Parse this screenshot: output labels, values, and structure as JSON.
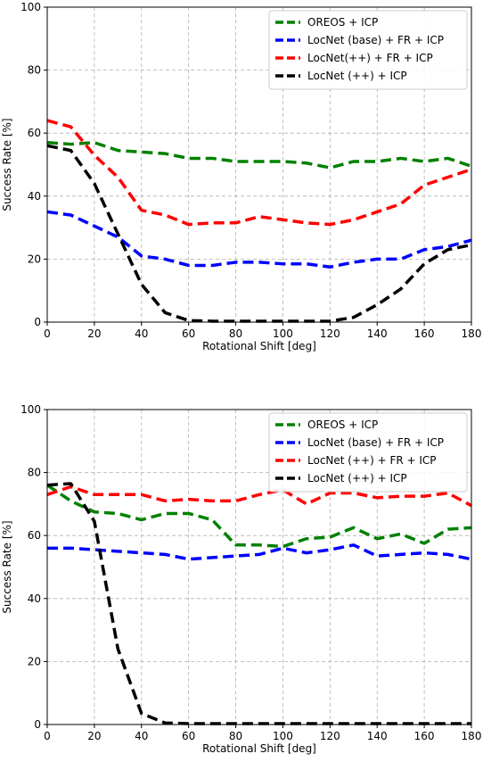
{
  "chart_data": [
    {
      "type": "line",
      "title": "",
      "xlabel": "Rotational Shift [deg]",
      "ylabel": "Success Rate [%]",
      "xlim": [
        0,
        180
      ],
      "ylim": [
        0,
        100
      ],
      "xticks": [
        "0",
        "20",
        "40",
        "60",
        "80",
        "100",
        "120",
        "140",
        "160",
        "180"
      ],
      "yticks": [
        "0",
        "20",
        "40",
        "60",
        "80",
        "100"
      ],
      "grid": true,
      "legend_position": "top-right",
      "x": [
        0,
        10,
        20,
        30,
        40,
        50,
        60,
        70,
        80,
        90,
        100,
        110,
        120,
        130,
        140,
        150,
        160,
        170,
        180
      ],
      "series": [
        {
          "name": "OREOS + ICP",
          "color": "#008000",
          "values": [
            57,
            56.5,
            57,
            54.5,
            54,
            53.5,
            52,
            52,
            51,
            51,
            51,
            50.5,
            49,
            51,
            51,
            52,
            51,
            52,
            49.5
          ]
        },
        {
          "name": "LocNet (base) + FR + ICP",
          "color": "#0000ff",
          "values": [
            35,
            34,
            30.5,
            27,
            21,
            20,
            18,
            18,
            19,
            19,
            18.5,
            18.5,
            17.5,
            19,
            20,
            20,
            23,
            24,
            26
          ]
        },
        {
          "name": "LocNet(++) + FR + ICP",
          "color": "#ff0000",
          "values": [
            64,
            62,
            53,
            46,
            35.5,
            34,
            31,
            31.5,
            31.5,
            33.5,
            32.5,
            31.5,
            31,
            32.5,
            35,
            37.5,
            43.5,
            46,
            48.5
          ]
        },
        {
          "name": "LocNet (++) + ICP",
          "color": "#000000",
          "values": [
            56,
            54.5,
            44,
            28,
            12,
            3,
            0.5,
            0.3,
            0.3,
            0.3,
            0.3,
            0.3,
            0.3,
            1.5,
            5.5,
            10.5,
            18.5,
            23,
            24.5
          ]
        }
      ]
    },
    {
      "type": "line",
      "title": "",
      "xlabel": "Rotational Shift [deg]",
      "ylabel": "Success Rate [%]",
      "xlim": [
        0,
        180
      ],
      "ylim": [
        0,
        100
      ],
      "xticks": [
        "0",
        "20",
        "40",
        "60",
        "80",
        "100",
        "120",
        "140",
        "160",
        "180"
      ],
      "yticks": [
        "0",
        "20",
        "40",
        "60",
        "80",
        "100"
      ],
      "grid": true,
      "legend_position": "top-right",
      "x": [
        0,
        10,
        20,
        30,
        40,
        50,
        60,
        70,
        80,
        90,
        100,
        110,
        120,
        130,
        140,
        150,
        160,
        170,
        180
      ],
      "series": [
        {
          "name": "OREOS + ICP",
          "color": "#008000",
          "values": [
            76,
            71,
            67.5,
            67,
            65,
            67,
            67,
            65,
            57,
            57,
            56.5,
            59,
            59.5,
            62.5,
            59,
            60.5,
            57.5,
            62,
            62.5
          ]
        },
        {
          "name": "LocNet (base) + FR + ICP",
          "color": "#0000ff",
          "values": [
            56,
            56,
            55.5,
            55,
            54.5,
            54,
            52.5,
            53,
            53.5,
            54,
            56,
            54.5,
            55.5,
            57,
            53.5,
            54,
            54.5,
            54,
            52.5
          ]
        },
        {
          "name": "LocNet (++) + FR + ICP",
          "color": "#ff0000",
          "values": [
            73,
            75.5,
            73,
            73,
            73,
            71,
            71.5,
            71,
            71,
            73,
            74.5,
            70,
            73.5,
            73.5,
            72,
            72.5,
            72.5,
            73.5,
            69.5
          ]
        },
        {
          "name": "LocNet (++) + ICP",
          "color": "#000000",
          "values": [
            76,
            76.5,
            64.5,
            24,
            3.5,
            0.5,
            0.3,
            0.3,
            0.3,
            0.3,
            0.3,
            0.3,
            0.3,
            0.3,
            0.3,
            0.3,
            0.3,
            0.3,
            0.3
          ]
        }
      ]
    }
  ]
}
